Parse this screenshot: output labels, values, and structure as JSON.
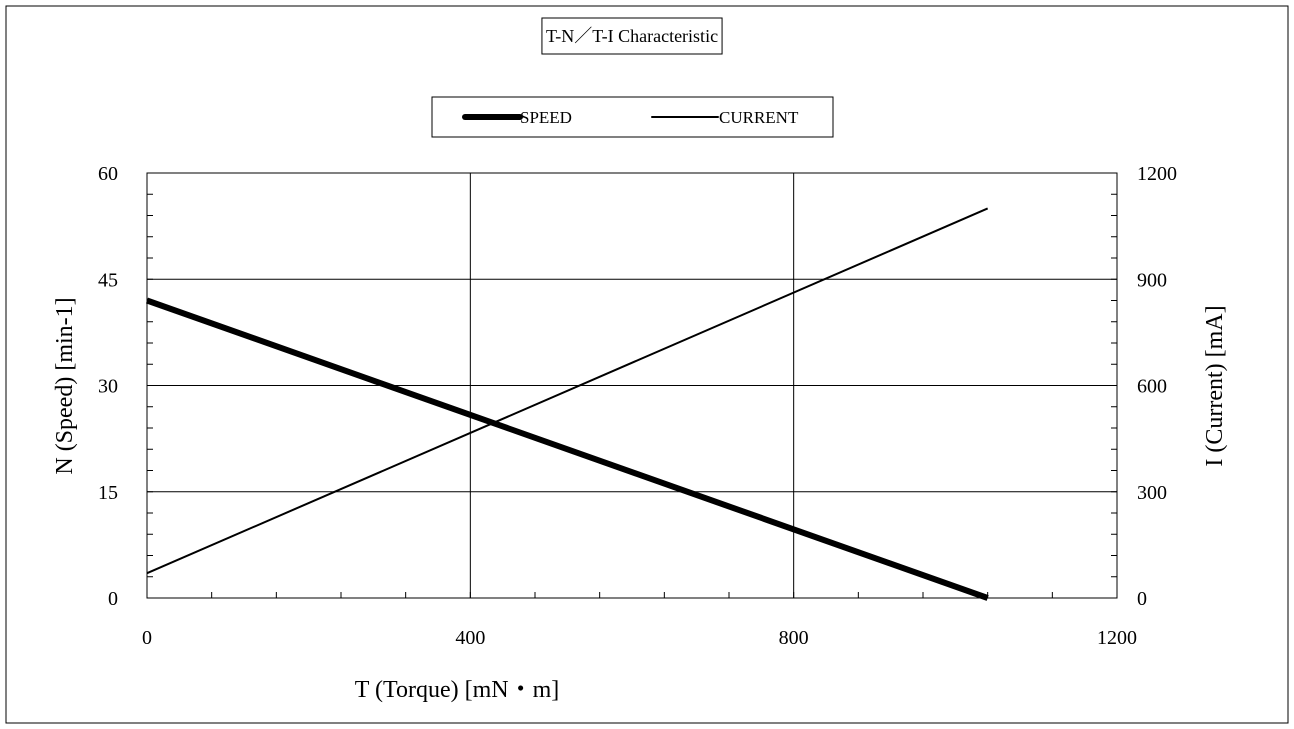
{
  "chart_data": {
    "type": "line",
    "title": "T-N／T-I Characteristic",
    "xlabel": "T (Torque) [mN・m]",
    "ylabel_left": "N (Speed) [min-1]",
    "ylabel_right": "I (Current) [mA]",
    "xlim": [
      0,
      1200
    ],
    "ylim_left": [
      0,
      60
    ],
    "ylim_right": [
      0,
      1200
    ],
    "x_ticks": [
      0,
      400,
      800,
      1200
    ],
    "y_left_ticks": [
      0,
      15,
      30,
      45,
      60
    ],
    "y_right_ticks": [
      0,
      300,
      600,
      900,
      1200
    ],
    "grid": true,
    "legend_position": "top",
    "series": [
      {
        "name": "SPEED",
        "axis": "left",
        "color": "#000000",
        "line_weight": "thick",
        "x": [
          0,
          1040
        ],
        "y": [
          42,
          0
        ]
      },
      {
        "name": "CURRENT",
        "axis": "right",
        "color": "#000000",
        "line_weight": "thin",
        "x": [
          0,
          1040
        ],
        "y": [
          70,
          1100
        ]
      }
    ]
  }
}
